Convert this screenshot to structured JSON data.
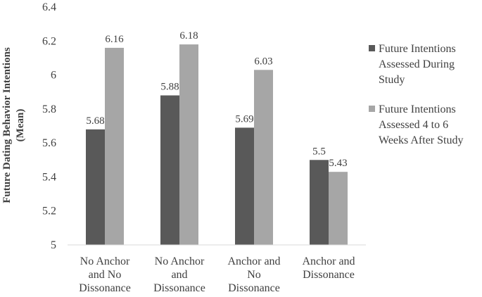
{
  "chart_data": {
    "type": "bar",
    "categories": [
      [
        "No Anchor",
        "and No",
        "Dissonance"
      ],
      [
        "No Anchor",
        "and",
        "Dissonance"
      ],
      [
        "Anchor and",
        "No",
        "Dissonance"
      ],
      [
        "Anchor and",
        "Dissonance"
      ]
    ],
    "series": [
      {
        "name": "Future Intentions Assessed During Study",
        "name_lines": [
          "Future Intentions",
          "Assessed During",
          "Study"
        ],
        "color": "#595959",
        "values": [
          5.68,
          5.88,
          5.69,
          5.5
        ],
        "labels": [
          "5.68",
          "5.88",
          "5.69",
          "5.5"
        ]
      },
      {
        "name": "Future Intentions Assessed 4 to 6 Weeks After Study",
        "name_lines": [
          "Future Intentions",
          "Assessed 4 to 6",
          "Weeks After Study"
        ],
        "color": "#a6a6a6",
        "values": [
          6.16,
          6.18,
          6.03,
          5.43
        ],
        "labels": [
          "6.16",
          "6.18",
          "6.03",
          "5.43"
        ]
      }
    ],
    "title": "",
    "xlabel": "",
    "ylabel": "Future Dating Behavior Intentions (Mean)",
    "ylabel_lines": [
      "Future Dating Behavior Intentions",
      "(Mean)"
    ],
    "ylim": [
      5,
      6.4
    ],
    "yticks": [
      5,
      5.2,
      5.4,
      5.6,
      5.8,
      6,
      6.2,
      6.4
    ],
    "ytick_labels": [
      "5",
      "5.2",
      "5.4",
      "5.6",
      "5.8",
      "6",
      "6.2",
      "6.4"
    ],
    "grid": false,
    "legend": "right"
  }
}
